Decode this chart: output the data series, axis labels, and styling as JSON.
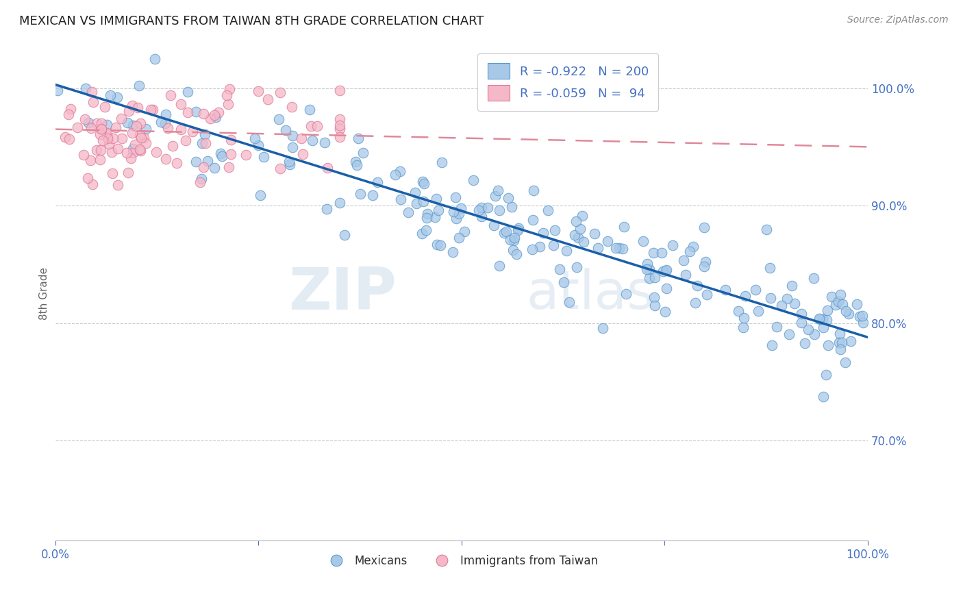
{
  "title": "MEXICAN VS IMMIGRANTS FROM TAIWAN 8TH GRADE CORRELATION CHART",
  "source": "Source: ZipAtlas.com",
  "ylabel": "8th Grade",
  "xmin": 0.0,
  "xmax": 1.0,
  "ymin": 0.615,
  "ymax": 1.035,
  "ytick_values": [
    0.7,
    0.8,
    0.9,
    1.0
  ],
  "watermark_zip": "ZIP",
  "watermark_atlas": "atlas",
  "blue_color": "#a8c8e8",
  "blue_edge_color": "#5599cc",
  "pink_color": "#f5b8c8",
  "pink_edge_color": "#dd7799",
  "blue_line_color": "#1a5fa8",
  "pink_line_color": "#e08898",
  "legend_blue_label_r": "R = -0.922",
  "legend_blue_label_n": "N = 200",
  "legend_pink_label_r": "R = -0.059",
  "legend_pink_label_n": "N =  94",
  "legend_mexicans": "Mexicans",
  "legend_taiwan": "Immigrants from Taiwan",
  "blue_N": 200,
  "pink_N": 94,
  "blue_intercept": 1.003,
  "blue_slope": -0.215,
  "blue_noise": 0.022,
  "pink_intercept": 0.965,
  "pink_slope": -0.015,
  "pink_noise": 0.02,
  "grid_color": "#cccccc",
  "title_fontsize": 13,
  "label_color": "#4472c4",
  "source_color": "#888888"
}
